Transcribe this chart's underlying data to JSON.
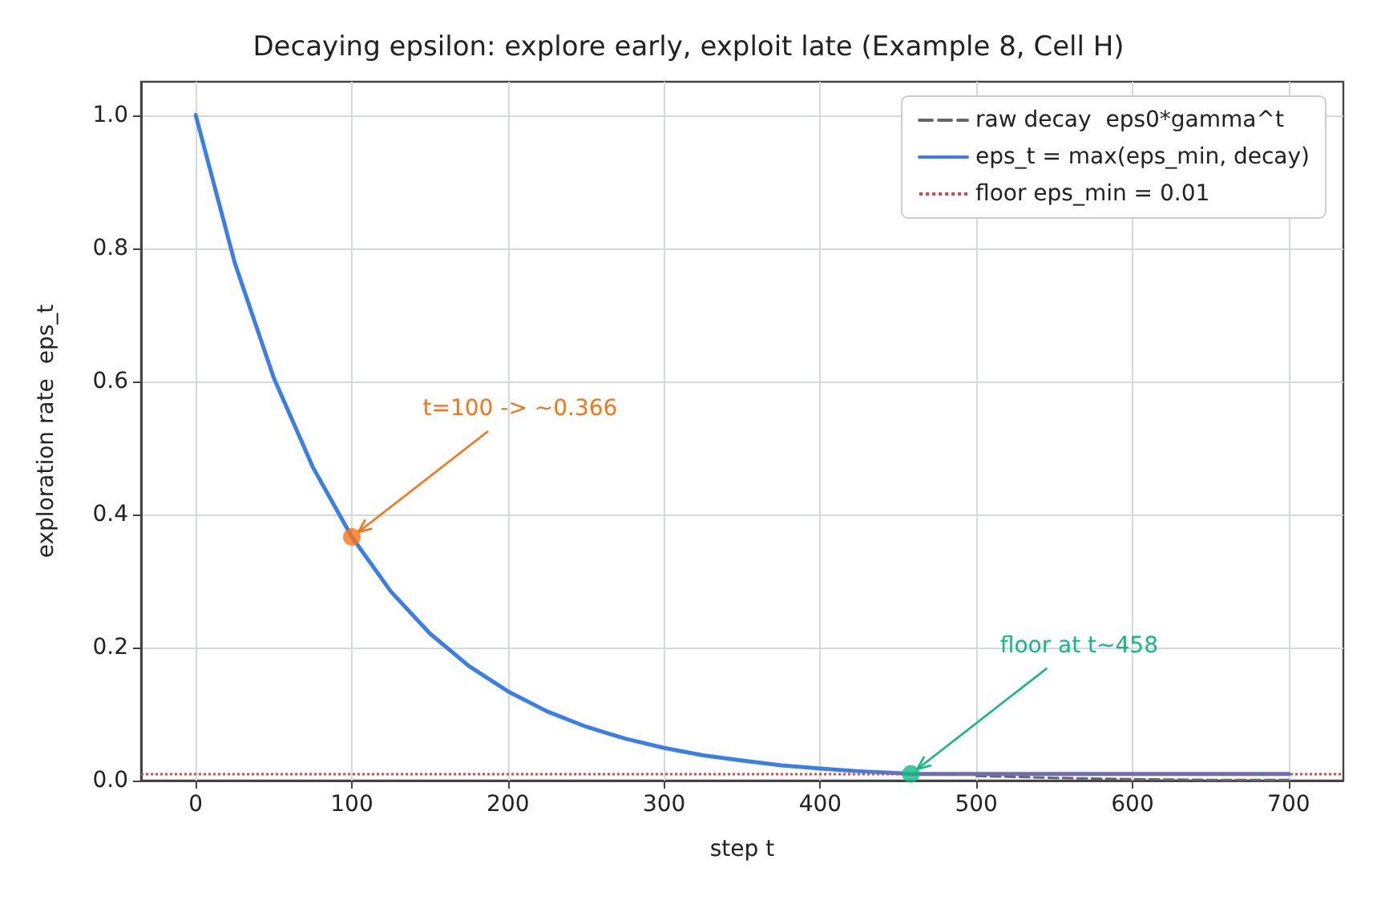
{
  "chart_data": {
    "type": "line",
    "title": "Decaying epsilon: explore early, exploit late (Example 8, Cell H)",
    "xlabel": "step t",
    "ylabel": "exploration rate  eps_t",
    "series": [
      {
        "name": "raw decay  eps0*gamma^t",
        "color": "#666666",
        "line_style": "dashed",
        "x": [
          500,
          550,
          600,
          650,
          700
        ],
        "values": [
          0.007,
          0.004,
          0.002,
          0.001,
          0.001
        ]
      },
      {
        "name": "eps_t = max(eps_min, decay)",
        "color": "#3b7ee8",
        "line_style": "solid",
        "x": [
          0,
          25,
          50,
          75,
          100,
          125,
          150,
          175,
          200,
          225,
          250,
          275,
          300,
          325,
          350,
          375,
          400,
          425,
          450,
          458,
          475,
          500,
          550,
          600,
          650,
          700
        ],
        "values": [
          1,
          0.778,
          0.605,
          0.471,
          0.366,
          0.284,
          0.221,
          0.172,
          0.134,
          0.104,
          0.081,
          0.063,
          0.049,
          0.038,
          0.03,
          0.023,
          0.018,
          0.014,
          0.011,
          0.01,
          0.01,
          0.01,
          0.01,
          0.01,
          0.01,
          0.01
        ]
      },
      {
        "type": "scatter",
        "marker": "circle",
        "color": "#f97316",
        "x": [
          100
        ],
        "values": [
          0.366
        ]
      },
      {
        "type": "scatter",
        "marker": "circle",
        "color": "#10b981",
        "x": [
          458
        ],
        "values": [
          0.01
        ]
      }
    ],
    "ref_lines": [
      {
        "axis": "y",
        "value": 0.01,
        "label": "floor eps_min = 0.01",
        "color": "#e0474c",
        "line_style": "dotted"
      }
    ],
    "annotations": [
      {
        "text": "t=100 -> ~0.366",
        "x": 100,
        "y": 0.366
      },
      {
        "text": "floor at t~458",
        "x": 458,
        "y": 0.01
      }
    ],
    "xlim": [
      -35,
      735
    ],
    "ylim": [
      0,
      1.05
    ],
    "xticks": [
      0,
      100,
      200,
      300,
      400,
      500,
      600,
      700
    ],
    "yticks": [
      {
        "value": 0,
        "label": "0.0"
      },
      0.2,
      0.4,
      0.6,
      0.8,
      {
        "value": 1,
        "label": "1.0"
      }
    ],
    "grid": true,
    "legend": "top right",
    "marker": "none"
  }
}
